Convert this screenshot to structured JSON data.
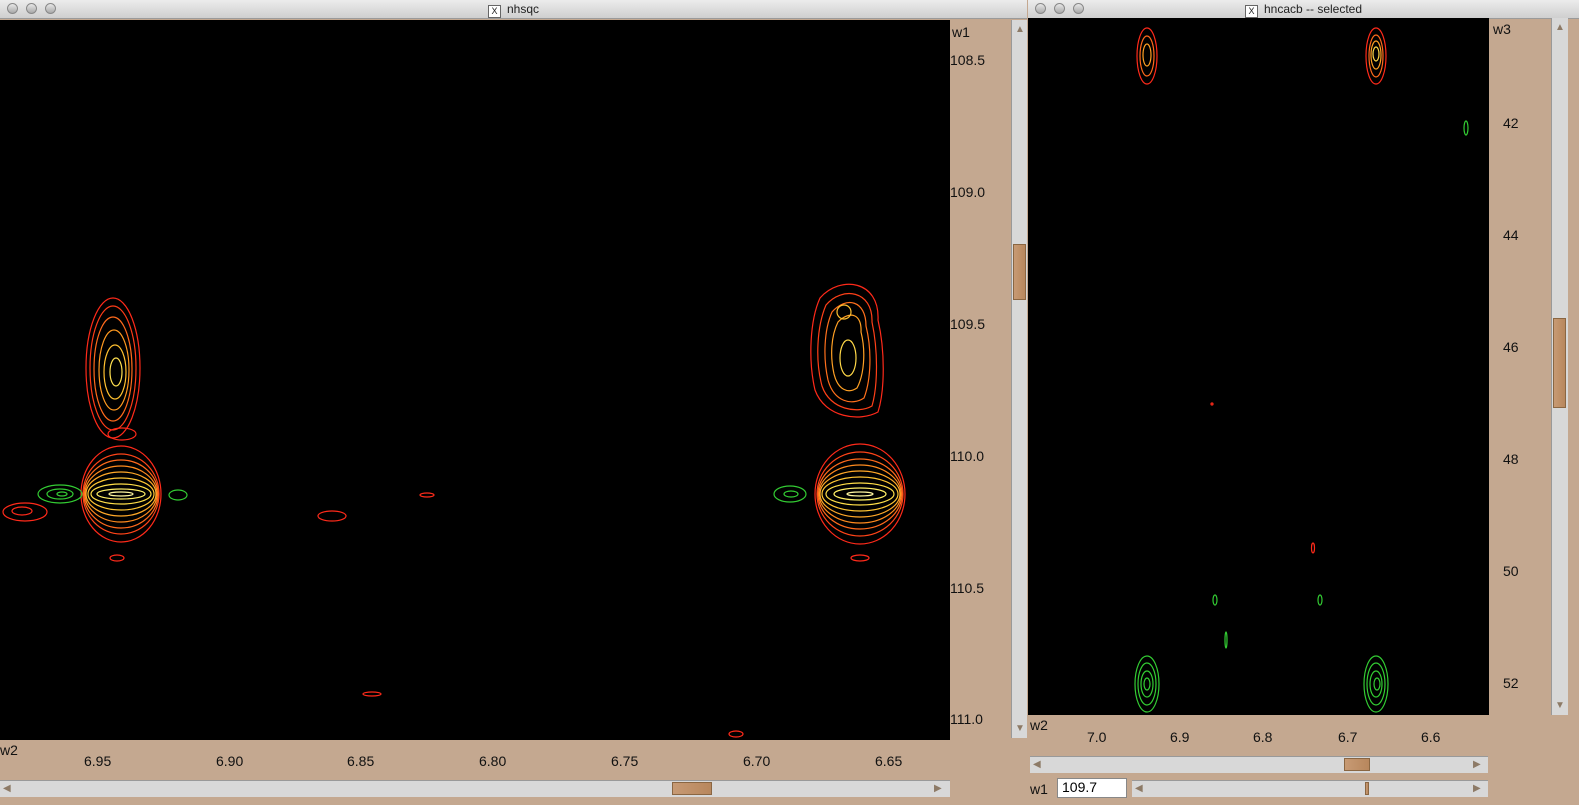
{
  "left_window": {
    "title": "nhsqc",
    "x_axis_label": "w2",
    "y_axis_label": "w1",
    "x_ticks": [
      "6.95",
      "6.90",
      "6.85",
      "6.80",
      "6.75",
      "6.70",
      "6.65"
    ],
    "y_ticks": [
      "108.5",
      "109.0",
      "109.5",
      "110.0",
      "110.5",
      "111.0"
    ]
  },
  "right_window": {
    "title": "hncacb -- selected",
    "x_axis_label": "w2",
    "y_axis_label": "w3",
    "x_ticks": [
      "7.0",
      "6.9",
      "6.8",
      "6.7",
      "6.6"
    ],
    "y_ticks": [
      "42",
      "44",
      "46",
      "48",
      "50",
      "52"
    ],
    "w1_label": "w1",
    "w1_value": "109.7"
  },
  "colors": {
    "positive_low": "#ff2a1a",
    "positive_high": "#ffee55",
    "negative": "#33cc33",
    "background": "#c4a890"
  }
}
